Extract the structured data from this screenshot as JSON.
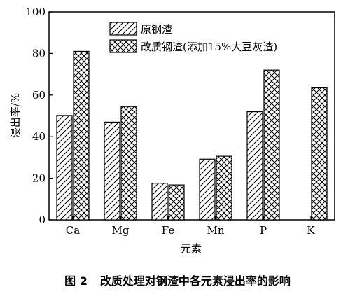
{
  "chart_data": {
    "type": "bar",
    "categories": [
      "Ca",
      "Mg",
      "Fe",
      "Mn",
      "P",
      "K"
    ],
    "series": [
      {
        "name": "原钢渣",
        "pattern": "diagonal-hatch",
        "values": [
          50.2,
          47,
          17.6,
          29.2,
          52,
          null
        ]
      },
      {
        "name": "改质钢渣(添加15%大豆灰渣)",
        "pattern": "cross-hatch",
        "values": [
          81,
          54.5,
          16.8,
          30.6,
          72,
          63.5
        ]
      }
    ],
    "xlabel": "元素",
    "ylabel": "浸出率/%",
    "ylim": [
      0,
      100
    ],
    "yticks": [
      0,
      20,
      40,
      60,
      80,
      100
    ],
    "legend_position": "top-right",
    "grid": false
  },
  "caption": {
    "figure_no": "图 2",
    "text": "改质处理对钢渣中各元素浸出率的影响"
  },
  "style": {
    "ink": "#000000",
    "background": "#ffffff"
  }
}
